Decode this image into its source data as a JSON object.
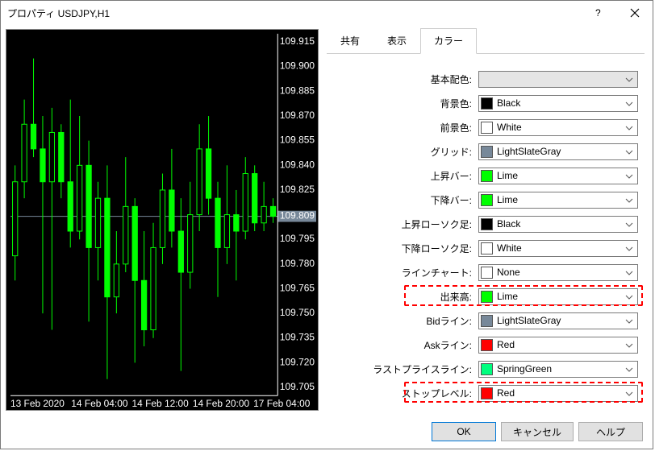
{
  "window": {
    "title": "プロパティ USDJPY,H1"
  },
  "tabs": {
    "t0": "共有",
    "t1": "表示",
    "t2": "カラー",
    "active": 2
  },
  "settings": {
    "base": {
      "label": "基本配色:",
      "swatch": "",
      "name": "",
      "blank": true
    },
    "bg": {
      "label": "背景色:",
      "swatch": "#000000",
      "name": "Black"
    },
    "fg": {
      "label": "前景色:",
      "swatch": "#ffffff",
      "name": "White"
    },
    "grid": {
      "label": "グリッド:",
      "swatch": "#778899",
      "name": "LightSlateGray"
    },
    "barup": {
      "label": "上昇バー:",
      "swatch": "#00ff00",
      "name": "Lime"
    },
    "bardn": {
      "label": "下降バー:",
      "swatch": "#00ff00",
      "name": "Lime"
    },
    "cndup": {
      "label": "上昇ローソク足:",
      "swatch": "#000000",
      "name": "Black"
    },
    "cnddn": {
      "label": "下降ローソク足:",
      "swatch": "#ffffff",
      "name": "White"
    },
    "line": {
      "label": "ラインチャート:",
      "swatch": "#ffffff",
      "name": "None"
    },
    "vol": {
      "label": "出来高:",
      "swatch": "#00ff00",
      "name": "Lime",
      "highlight": true
    },
    "bid": {
      "label": "Bidライン:",
      "swatch": "#778899",
      "name": "LightSlateGray"
    },
    "ask": {
      "label": "Askライン:",
      "swatch": "#ff0000",
      "name": "Red"
    },
    "last": {
      "label": "ラストプライスライン:",
      "swatch": "#00ff7f",
      "name": "SpringGreen"
    },
    "stop": {
      "label": "ストップレベル:",
      "swatch": "#ff0000",
      "name": "Red",
      "highlight": true
    }
  },
  "footer": {
    "ok": "OK",
    "cancel": "キャンセル",
    "help": "ヘルプ"
  },
  "chart": {
    "bg": "#000000",
    "candle_color": "#00ff00",
    "wick_color": "#00ff00",
    "axis_color": "#ffffff",
    "grid_color": "#404040",
    "price_line_color": "#778899",
    "ymin": 109.7,
    "ymax": 109.92,
    "yticks": [
      "109.915",
      "109.900",
      "109.885",
      "109.870",
      "109.855",
      "109.840",
      "109.825",
      "109.795",
      "109.780",
      "109.765",
      "109.750",
      "109.735",
      "109.720",
      "109.705"
    ],
    "price_label": "109.809",
    "xlabels": [
      "13 Feb 2020",
      "14 Feb 04:00",
      "14 Feb 12:00",
      "14 Feb 20:00",
      "17 Feb 04:00"
    ],
    "candles": [
      {
        "o": 109.785,
        "c": 109.83,
        "h": 109.84,
        "l": 109.77
      },
      {
        "o": 109.83,
        "c": 109.865,
        "h": 109.88,
        "l": 109.82
      },
      {
        "o": 109.865,
        "c": 109.85,
        "h": 109.905,
        "l": 109.845
      },
      {
        "o": 109.85,
        "c": 109.83,
        "h": 109.87,
        "l": 109.75
      },
      {
        "o": 109.83,
        "c": 109.86,
        "h": 109.875,
        "l": 109.74
      },
      {
        "o": 109.86,
        "c": 109.83,
        "h": 109.865,
        "l": 109.82
      },
      {
        "o": 109.83,
        "c": 109.8,
        "h": 109.88,
        "l": 109.79
      },
      {
        "o": 109.8,
        "c": 109.84,
        "h": 109.87,
        "l": 109.795
      },
      {
        "o": 109.84,
        "c": 109.79,
        "h": 109.855,
        "l": 109.745
      },
      {
        "o": 109.79,
        "c": 109.82,
        "h": 109.83,
        "l": 109.77
      },
      {
        "o": 109.82,
        "c": 109.76,
        "h": 109.84,
        "l": 109.71
      },
      {
        "o": 109.76,
        "c": 109.78,
        "h": 109.8,
        "l": 109.75
      },
      {
        "o": 109.78,
        "c": 109.815,
        "h": 109.845,
        "l": 109.775
      },
      {
        "o": 109.815,
        "c": 109.77,
        "h": 109.82,
        "l": 109.72
      },
      {
        "o": 109.77,
        "c": 109.74,
        "h": 109.8,
        "l": 109.73
      },
      {
        "o": 109.74,
        "c": 109.79,
        "h": 109.805,
        "l": 109.735
      },
      {
        "o": 109.79,
        "c": 109.825,
        "h": 109.835,
        "l": 109.78
      },
      {
        "o": 109.825,
        "c": 109.8,
        "h": 109.85,
        "l": 109.79
      },
      {
        "o": 109.8,
        "c": 109.775,
        "h": 109.82,
        "l": 109.715
      },
      {
        "o": 109.775,
        "c": 109.81,
        "h": 109.83,
        "l": 109.765
      },
      {
        "o": 109.81,
        "c": 109.85,
        "h": 109.865,
        "l": 109.8
      },
      {
        "o": 109.85,
        "c": 109.82,
        "h": 109.87,
        "l": 109.81
      },
      {
        "o": 109.82,
        "c": 109.79,
        "h": 109.83,
        "l": 109.76
      },
      {
        "o": 109.79,
        "c": 109.81,
        "h": 109.84,
        "l": 109.78
      },
      {
        "o": 109.81,
        "c": 109.8,
        "h": 109.825,
        "l": 109.77
      },
      {
        "o": 109.8,
        "c": 109.835,
        "h": 109.845,
        "l": 109.795
      },
      {
        "o": 109.835,
        "c": 109.805,
        "h": 109.84,
        "l": 109.8
      },
      {
        "o": 109.805,
        "c": 109.815,
        "h": 109.83,
        "l": 109.8
      },
      {
        "o": 109.815,
        "c": 109.809,
        "h": 109.82,
        "l": 109.805
      }
    ]
  }
}
